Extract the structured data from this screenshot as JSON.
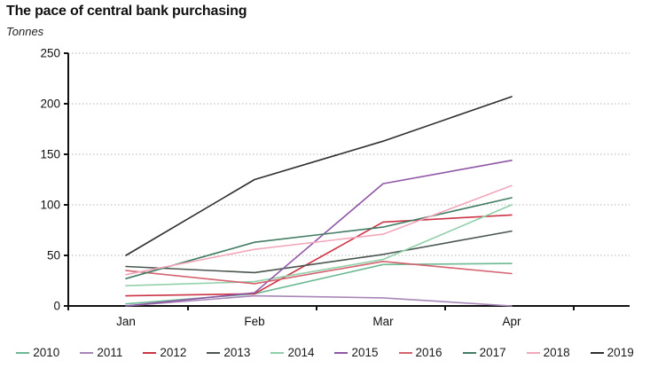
{
  "header": {
    "title": "The pace of central bank purchasing",
    "subtitle": "Tonnes"
  },
  "chart_data": {
    "type": "line",
    "title": "The pace of central bank purchasing",
    "ylabel": "Tonnes",
    "x": [
      "Jan",
      "Feb",
      "Mar",
      "Apr"
    ],
    "ylim": [
      0,
      250
    ],
    "yticks": [
      0,
      50,
      100,
      150,
      200,
      250
    ],
    "grid": "horizontal-dotted",
    "legend_position": "bottom",
    "series": [
      {
        "name": "2010",
        "color": "#6cb993",
        "values": [
          2,
          12,
          41,
          42
        ]
      },
      {
        "name": "2011",
        "color": "#a886b8",
        "values": [
          0,
          10,
          8,
          0
        ]
      },
      {
        "name": "2012",
        "color": "#cc3344",
        "values": [
          10,
          12,
          83,
          90
        ]
      },
      {
        "name": "2013",
        "color": "#49564e",
        "values": [
          39,
          33,
          51,
          74
        ]
      },
      {
        "name": "2014",
        "color": "#90d0a9",
        "values": [
          20,
          24,
          46,
          100
        ]
      },
      {
        "name": "2015",
        "color": "#8e56a6",
        "values": [
          0,
          13,
          121,
          144
        ]
      },
      {
        "name": "2016",
        "color": "#d4626f",
        "values": [
          35,
          22,
          44,
          32
        ]
      },
      {
        "name": "2017",
        "color": "#417c63",
        "values": [
          27,
          63,
          78,
          107
        ]
      },
      {
        "name": "2018",
        "color": "#f2a7bb",
        "values": [
          31,
          56,
          71,
          119
        ]
      },
      {
        "name": "2019",
        "color": "#2e2e2e",
        "values": [
          50,
          125,
          163,
          207
        ]
      }
    ]
  },
  "axes": {
    "x_tick_labels": [
      "Jan",
      "Feb",
      "Mar",
      "Apr"
    ],
    "y_tick_labels": [
      "0",
      "50",
      "100",
      "150",
      "200",
      "250"
    ]
  }
}
